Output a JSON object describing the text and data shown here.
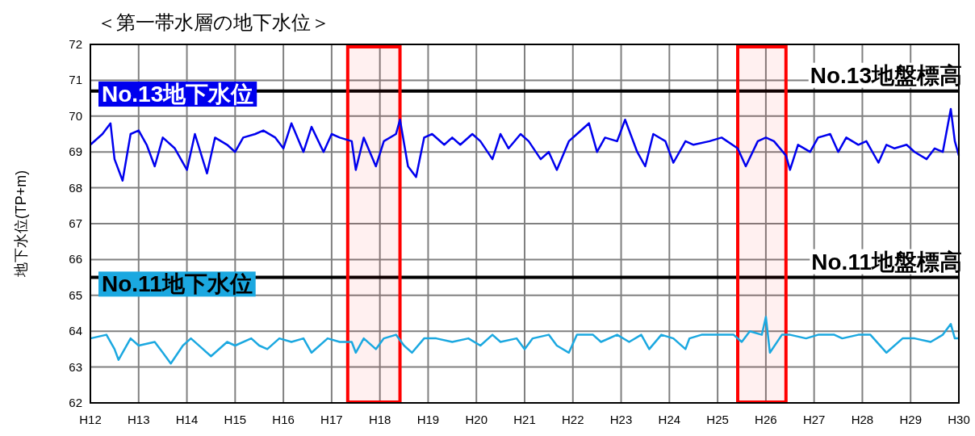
{
  "chart_data": {
    "type": "line",
    "title": "＜第一帯水層の地下水位＞",
    "ylabel": "地下水位(TP+m)",
    "xlim": [
      "2000",
      "2018"
    ],
    "ylim": [
      62,
      72
    ],
    "xticks": [
      {
        "value": "2000",
        "label": "H12"
      },
      {
        "value": "2001",
        "label": "H13"
      },
      {
        "value": "2002",
        "label": "H14"
      },
      {
        "value": "2003",
        "label": "H15"
      },
      {
        "value": "2004",
        "label": "H16"
      },
      {
        "value": "2005",
        "label": "H17"
      },
      {
        "value": "2006",
        "label": "H18"
      },
      {
        "value": "2007",
        "label": "H19"
      },
      {
        "value": "2008",
        "label": "H20"
      },
      {
        "value": "2009",
        "label": "H21"
      },
      {
        "value": "2010",
        "label": "H22"
      },
      {
        "value": "2011",
        "label": "H23"
      },
      {
        "value": "2012",
        "label": "H24"
      },
      {
        "value": "2013",
        "label": "H25"
      },
      {
        "value": "2014",
        "label": "H26"
      },
      {
        "value": "2015",
        "label": "H27"
      },
      {
        "value": "2016",
        "label": "H28"
      },
      {
        "value": "2017",
        "label": "H29"
      },
      {
        "value": "2018",
        "label": "H30"
      }
    ],
    "yticks": [
      62,
      63,
      64,
      65,
      66,
      67,
      68,
      69,
      70,
      71,
      72
    ],
    "grid": true,
    "series": [
      {
        "name": "No.13地下水位",
        "color": "#0000ee",
        "x": [
          "2000-01",
          "2000-04",
          "2000-06",
          "2000-07",
          "2000-09",
          "2000-11",
          "2001-01",
          "2001-03",
          "2001-05",
          "2001-07",
          "2001-10",
          "2002-01",
          "2002-03",
          "2002-06",
          "2002-08",
          "2002-11",
          "2003-01",
          "2003-03",
          "2003-06",
          "2003-08",
          "2003-11",
          "2004-01",
          "2004-03",
          "2004-06",
          "2004-08",
          "2004-11",
          "2005-01",
          "2005-03",
          "2005-06",
          "2005-07",
          "2005-09",
          "2005-12",
          "2006-02",
          "2006-05",
          "2006-06",
          "2006-08",
          "2006-10",
          "2006-12",
          "2007-02",
          "2007-05",
          "2007-07",
          "2007-09",
          "2007-12",
          "2008-02",
          "2008-05",
          "2008-07",
          "2008-09",
          "2008-12",
          "2009-02",
          "2009-05",
          "2009-07",
          "2009-09",
          "2009-12",
          "2010-02",
          "2010-05",
          "2010-07",
          "2010-09",
          "2010-12",
          "2011-02",
          "2011-05",
          "2011-07",
          "2011-09",
          "2011-12",
          "2012-02",
          "2012-05",
          "2012-07",
          "2012-11",
          "2013-02",
          "2013-06",
          "2013-08",
          "2013-11",
          "2014-01",
          "2014-03",
          "2014-06",
          "2014-07",
          "2014-09",
          "2014-12",
          "2015-02",
          "2015-05",
          "2015-07",
          "2015-09",
          "2015-12",
          "2016-02",
          "2016-05",
          "2016-07",
          "2016-09",
          "2016-12",
          "2017-02",
          "2017-05",
          "2017-07",
          "2017-09",
          "2017-11",
          "2017-12",
          "2018-01"
        ],
        "values": [
          69.2,
          69.5,
          69.8,
          68.8,
          68.2,
          69.5,
          69.6,
          69.2,
          68.6,
          69.4,
          69.1,
          68.5,
          69.5,
          68.4,
          69.4,
          69.2,
          69.0,
          69.4,
          69.5,
          69.6,
          69.4,
          69.1,
          69.8,
          69.0,
          69.7,
          69.0,
          69.5,
          69.4,
          69.3,
          68.5,
          69.4,
          68.6,
          69.3,
          69.5,
          69.9,
          68.6,
          68.3,
          69.4,
          69.5,
          69.2,
          69.4,
          69.2,
          69.5,
          69.3,
          68.8,
          69.5,
          69.1,
          69.5,
          69.3,
          68.8,
          69.0,
          68.5,
          69.3,
          69.5,
          69.8,
          69.0,
          69.4,
          69.3,
          69.9,
          69.0,
          68.6,
          69.5,
          69.3,
          68.7,
          69.3,
          69.2,
          69.3,
          69.4,
          69.1,
          68.6,
          69.3,
          69.4,
          69.3,
          68.9,
          68.5,
          69.2,
          69.0,
          69.4,
          69.5,
          69.0,
          69.4,
          69.2,
          69.3,
          68.7,
          69.2,
          69.1,
          69.2,
          69.0,
          68.8,
          69.1,
          69.0,
          70.2,
          69.3,
          68.9
        ]
      },
      {
        "name": "No.11地下水位",
        "color": "#1ba8e0",
        "x": [
          "2000-01",
          "2000-05",
          "2000-07",
          "2000-08",
          "2000-11",
          "2001-01",
          "2001-05",
          "2001-07",
          "2001-09",
          "2001-12",
          "2002-02",
          "2002-05",
          "2002-07",
          "2002-11",
          "2003-01",
          "2003-05",
          "2003-07",
          "2003-09",
          "2003-12",
          "2004-03",
          "2004-06",
          "2004-08",
          "2004-12",
          "2005-03",
          "2005-06",
          "2005-07",
          "2005-09",
          "2005-12",
          "2006-02",
          "2006-05",
          "2006-07",
          "2006-09",
          "2006-12",
          "2007-03",
          "2007-07",
          "2007-11",
          "2008-02",
          "2008-05",
          "2008-07",
          "2008-11",
          "2009-01",
          "2009-03",
          "2009-07",
          "2009-09",
          "2009-12",
          "2010-02",
          "2010-06",
          "2010-08",
          "2010-12",
          "2011-03",
          "2011-06",
          "2011-08",
          "2011-11",
          "2012-02",
          "2012-05",
          "2012-06",
          "2012-09",
          "2013-01",
          "2013-05",
          "2013-07",
          "2013-09",
          "2013-12",
          "2014-01",
          "2014-02",
          "2014-05",
          "2014-07",
          "2014-11",
          "2015-02",
          "2015-06",
          "2015-08",
          "2015-12",
          "2016-03",
          "2016-07",
          "2016-11",
          "2017-02",
          "2017-06",
          "2017-09",
          "2017-11",
          "2017-12",
          "2018-01"
        ],
        "values": [
          63.8,
          63.9,
          63.5,
          63.2,
          63.8,
          63.6,
          63.7,
          63.4,
          63.1,
          63.6,
          63.8,
          63.5,
          63.3,
          63.7,
          63.6,
          63.8,
          63.6,
          63.5,
          63.8,
          63.7,
          63.8,
          63.4,
          63.8,
          63.7,
          63.7,
          63.4,
          63.8,
          63.5,
          63.8,
          63.9,
          63.6,
          63.4,
          63.8,
          63.8,
          63.7,
          63.8,
          63.6,
          63.9,
          63.7,
          63.8,
          63.5,
          63.8,
          63.9,
          63.6,
          63.4,
          63.9,
          63.9,
          63.7,
          63.9,
          63.7,
          63.9,
          63.5,
          63.9,
          63.8,
          63.5,
          63.8,
          63.9,
          63.9,
          63.9,
          63.7,
          64.0,
          63.9,
          64.4,
          63.4,
          63.9,
          63.9,
          63.8,
          63.9,
          63.9,
          63.8,
          63.9,
          63.9,
          63.4,
          63.8,
          63.8,
          63.7,
          63.9,
          64.2,
          63.8,
          63.8
        ]
      }
    ],
    "ref_lines": [
      {
        "axis": "y",
        "value": 70.7,
        "label": "No.13地盤標高",
        "color": "#000000"
      },
      {
        "axis": "y",
        "value": 65.5,
        "label": "No.11地盤標高",
        "color": "#000000"
      }
    ],
    "bands": [
      {
        "axis": "x",
        "from": "2005-05",
        "to": "2006-06",
        "color": "#ff0000"
      },
      {
        "axis": "x",
        "from": "2013-06",
        "to": "2014-06",
        "color": "#ff0000"
      }
    ]
  }
}
